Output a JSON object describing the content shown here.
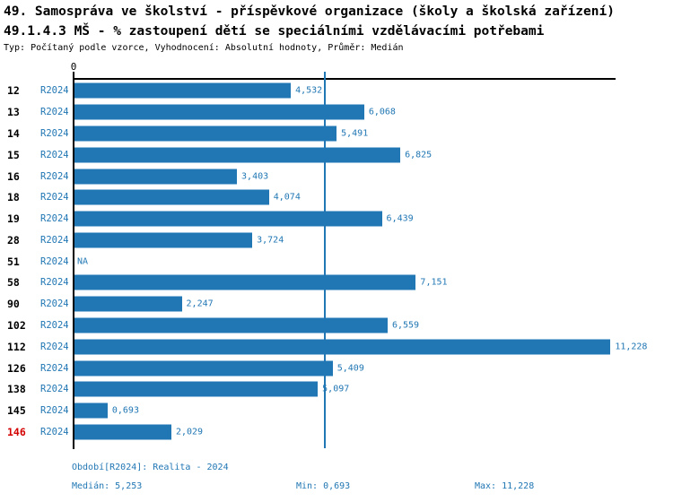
{
  "header": {
    "title_line1": "49. Samospráva ve školství - příspěvkové organizace (školy a školská zařízení)",
    "title_line2": "49.1.4.3 MŠ - % zastoupení dětí se speciálními vzdělávacími potřebami",
    "subtitle": "Typ: Počítaný podle vzorce, Vyhodnocení: Absolutní hodnoty, Průměr: Medián"
  },
  "colors": {
    "bar_blue": "#2177B4",
    "text_blue": "#2177B4",
    "highlight_red": "#D40000",
    "axis_black": "#000000"
  },
  "chart_data": {
    "type": "bar",
    "orientation": "horizontal",
    "title": "49.1.4.3 MŠ - % zastoupení dětí se speciálními vzdělávacími potřebami",
    "zero_tick_label": "0",
    "xlim": [
      0,
      11.35
    ],
    "grid": false,
    "legend_position": "none",
    "decimal_format": "comma",
    "median": 5.253,
    "min": 0.693,
    "max": 11.228,
    "series_name": "R2024",
    "categories": [
      "12",
      "13",
      "14",
      "15",
      "16",
      "18",
      "19",
      "28",
      "51",
      "58",
      "90",
      "102",
      "112",
      "126",
      "138",
      "145",
      "146"
    ],
    "rows": [
      {
        "category": "12",
        "period": "R2024",
        "value": 4.532,
        "value_label": "4,532",
        "highlight": false
      },
      {
        "category": "13",
        "period": "R2024",
        "value": 6.068,
        "value_label": "6,068",
        "highlight": false
      },
      {
        "category": "14",
        "period": "R2024",
        "value": 5.491,
        "value_label": "5,491",
        "highlight": false
      },
      {
        "category": "15",
        "period": "R2024",
        "value": 6.825,
        "value_label": "6,825",
        "highlight": false
      },
      {
        "category": "16",
        "period": "R2024",
        "value": 3.403,
        "value_label": "3,403",
        "highlight": false
      },
      {
        "category": "18",
        "period": "R2024",
        "value": 4.074,
        "value_label": "4,074",
        "highlight": false
      },
      {
        "category": "19",
        "period": "R2024",
        "value": 6.439,
        "value_label": "6,439",
        "highlight": false
      },
      {
        "category": "28",
        "period": "R2024",
        "value": 3.724,
        "value_label": "3,724",
        "highlight": false
      },
      {
        "category": "51",
        "period": "R2024",
        "value": null,
        "value_label": "NA",
        "highlight": false
      },
      {
        "category": "58",
        "period": "R2024",
        "value": 7.151,
        "value_label": "7,151",
        "highlight": false
      },
      {
        "category": "90",
        "period": "R2024",
        "value": 2.247,
        "value_label": "2,247",
        "highlight": false
      },
      {
        "category": "102",
        "period": "R2024",
        "value": 6.559,
        "value_label": "6,559",
        "highlight": false
      },
      {
        "category": "112",
        "period": "R2024",
        "value": 11.228,
        "value_label": "11,228",
        "highlight": false
      },
      {
        "category": "126",
        "period": "R2024",
        "value": 5.409,
        "value_label": "5,409",
        "highlight": false
      },
      {
        "category": "138",
        "period": "R2024",
        "value": 5.097,
        "value_label": "5,097",
        "highlight": false
      },
      {
        "category": "145",
        "period": "R2024",
        "value": 0.693,
        "value_label": "0,693",
        "highlight": false
      },
      {
        "category": "146",
        "period": "R2024",
        "value": 2.029,
        "value_label": "2,029",
        "highlight": true
      }
    ]
  },
  "footer": {
    "period": "Období[R2024]: Realita - 2024",
    "median": "Medián: 5,253",
    "min": "Min: 0,693",
    "max": "Max: 11,228"
  }
}
